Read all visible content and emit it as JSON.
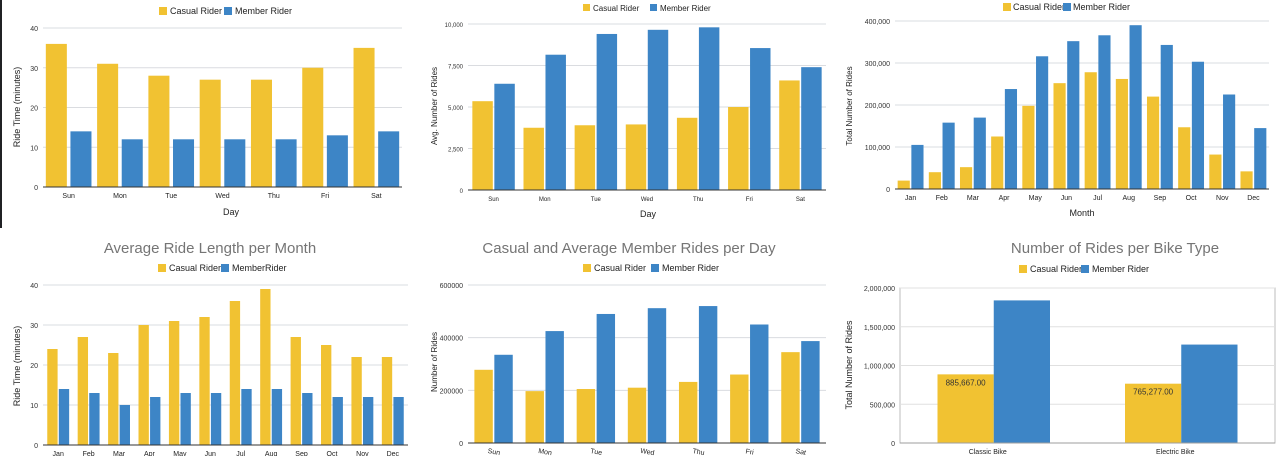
{
  "colors": {
    "casual": "#F1C232",
    "member": "#3D85C6",
    "grid": "#DADCE0",
    "axis": "#555555",
    "title": "#757575"
  },
  "chart_data": [
    {
      "type": "bar",
      "title": "",
      "xlabel": "Day",
      "ylabel": "Ride Time (minutes)",
      "ylim": [
        0,
        40
      ],
      "yticks": [
        "0",
        "10",
        "20",
        "30",
        "40"
      ],
      "legend_position": "top",
      "grid": true,
      "categories": [
        "Sun",
        "Mon",
        "Tue",
        "Wed",
        "Thu",
        "Fri",
        "Sat"
      ],
      "series": [
        {
          "name": "Casual Rider",
          "values": [
            36,
            31,
            28,
            27,
            27,
            30,
            35
          ]
        },
        {
          "name": "Member Rider",
          "values": [
            14,
            12,
            12,
            12,
            12,
            13,
            14
          ]
        }
      ]
    },
    {
      "type": "bar",
      "title": "",
      "xlabel": "Day",
      "ylabel": "Avg. Number of Rides",
      "ylim": [
        0,
        10000
      ],
      "yticks": [
        "0",
        "2,500",
        "5,000",
        "7,500",
        "10,000"
      ],
      "legend_position": "top",
      "grid": true,
      "categories": [
        "Sun",
        "Mon",
        "Tue",
        "Wed",
        "Thu",
        "Fri",
        "Sat"
      ],
      "series": [
        {
          "name": "Casual Rider",
          "values": [
            5350,
            3750,
            3900,
            3950,
            4350,
            5000,
            6600
          ]
        },
        {
          "name": "Member Rider",
          "values": [
            6400,
            8150,
            9400,
            9650,
            9800,
            8550,
            7400
          ]
        }
      ]
    },
    {
      "type": "bar",
      "title": "",
      "xlabel": "Month",
      "ylabel": "Total Number of Rides",
      "ylim": [
        0,
        400000
      ],
      "yticks": [
        "0",
        "100,000",
        "200,000",
        "300,000",
        "400,000"
      ],
      "legend_position": "top",
      "grid": true,
      "categories": [
        "Jan",
        "Feb",
        "Mar",
        "Apr",
        "May",
        "Jun",
        "Jul",
        "Aug",
        "Sep",
        "Oct",
        "Nov",
        "Dec"
      ],
      "series": [
        {
          "name": "Casual Rider",
          "values": [
            20000,
            40000,
            52000,
            125000,
            198000,
            252000,
            278000,
            262000,
            220000,
            147000,
            82000,
            42000
          ]
        },
        {
          "name": "Member Rider",
          "values": [
            105000,
            158000,
            170000,
            238000,
            316000,
            352000,
            366000,
            390000,
            343000,
            303000,
            225000,
            145000
          ]
        }
      ]
    },
    {
      "type": "bar",
      "title": "Average Ride Length per Month",
      "xlabel": "",
      "ylabel": "Ride Time (minutes)",
      "ylim": [
        0,
        40
      ],
      "yticks": [
        "0",
        "10",
        "20",
        "30",
        "40"
      ],
      "legend_position": "top",
      "grid": true,
      "categories": [
        "Jan",
        "Feb",
        "Mar",
        "Apr",
        "May",
        "Jun",
        "Jul",
        "Aug",
        "Sep",
        "Oct",
        "Nov",
        "Dec"
      ],
      "series": [
        {
          "name": "Casual Rider",
          "values": [
            24,
            27,
            23,
            30,
            31,
            32,
            36,
            39,
            27,
            25,
            22,
            22
          ]
        },
        {
          "name": "MemberRider",
          "values": [
            14,
            13,
            10,
            12,
            13,
            13,
            14,
            14,
            13,
            12,
            12,
            12
          ]
        }
      ]
    },
    {
      "type": "bar",
      "title": "Casual and Average Member Rides per Day",
      "xlabel": "",
      "ylabel": "Number of Rides",
      "ylim": [
        0,
        600000
      ],
      "yticks": [
        "0",
        "200000",
        "400000",
        "600000"
      ],
      "legend_position": "top",
      "grid": true,
      "categories": [
        "Sun",
        "Mon",
        "Tue",
        "Wed",
        "Thu",
        "Fri",
        "Sat"
      ],
      "series": [
        {
          "name": "Casual Rider",
          "values": [
            278000,
            197000,
            205000,
            210000,
            232000,
            260000,
            345000
          ]
        },
        {
          "name": "Member Rider",
          "values": [
            335000,
            425000,
            490000,
            512000,
            520000,
            450000,
            387000
          ]
        }
      ]
    },
    {
      "type": "bar",
      "title": "Number of Rides per Bike Type",
      "xlabel": "",
      "ylabel": "Total Number of Rides",
      "ylim": [
        0,
        2000000
      ],
      "yticks": [
        "0",
        "500,000",
        "1,000,000",
        "1,500,000",
        "2,000,000"
      ],
      "legend_position": "top",
      "grid": true,
      "categories": [
        "Classic Bike",
        "Electric Bike"
      ],
      "series": [
        {
          "name": "Casual Rider",
          "values": [
            885667,
            765277
          ],
          "labels": [
            "885,667.00",
            "765,277.00"
          ]
        },
        {
          "name": "Member Rider",
          "values": [
            1840000,
            1270000
          ]
        }
      ]
    }
  ]
}
